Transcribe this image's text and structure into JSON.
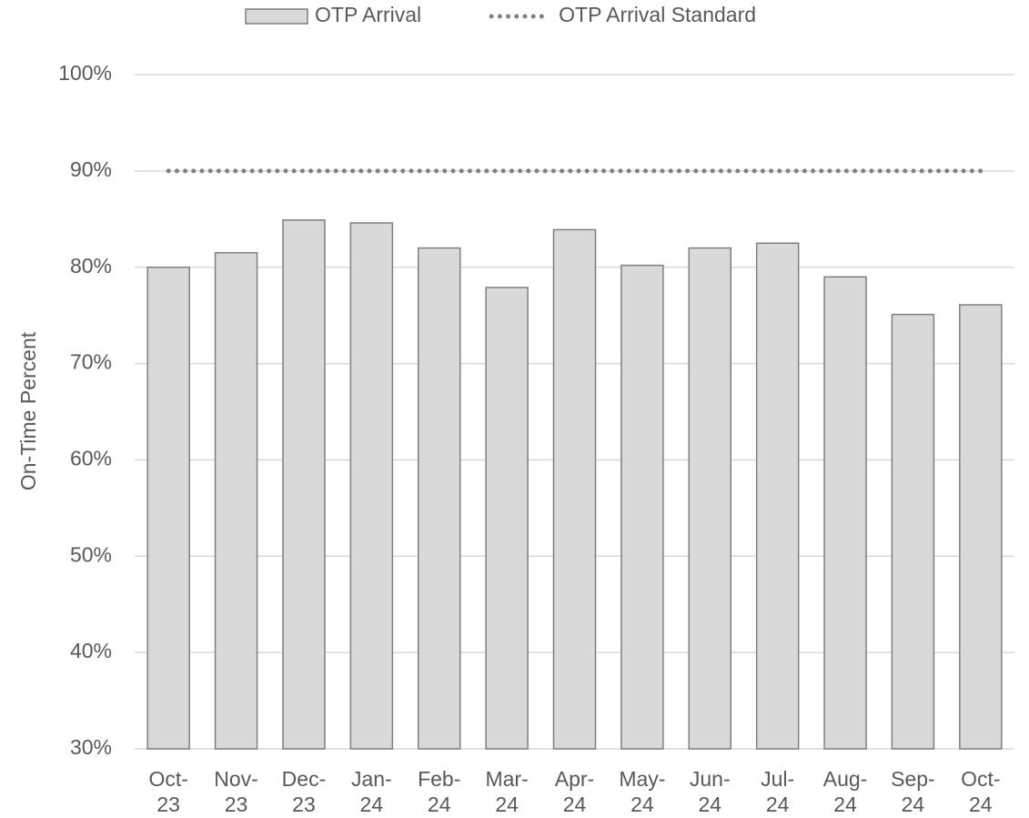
{
  "chart_data": {
    "type": "bar",
    "y_label": "On-Time Percent",
    "categories": [
      "Oct-23",
      "Nov-23",
      "Dec-23",
      "Jan-24",
      "Feb-24",
      "Mar-24",
      "Apr-24",
      "May-24",
      "Jun-24",
      "Jul-24",
      "Aug-24",
      "Sep-24",
      "Oct-24"
    ],
    "series": [
      {
        "name": "OTP Arrival",
        "type": "bar",
        "color": "#d9d9d9",
        "values": [
          80.0,
          81.5,
          84.9,
          84.6,
          82.0,
          77.9,
          83.9,
          80.2,
          82.0,
          82.5,
          79.0,
          75.1,
          76.1
        ]
      },
      {
        "name": "OTP Arrival Standard",
        "type": "line",
        "color": "#808080",
        "values": [
          90,
          90,
          90,
          90,
          90,
          90,
          90,
          90,
          90,
          90,
          90,
          90,
          90
        ]
      }
    ],
    "ylim": [
      30,
      100
    ],
    "yticks": [
      {
        "value": 30,
        "label": "30%"
      },
      {
        "value": 40,
        "label": "40%"
      },
      {
        "value": 50,
        "label": "50%"
      },
      {
        "value": 60,
        "label": "60%"
      },
      {
        "value": 70,
        "label": "70%"
      },
      {
        "value": 80,
        "label": "80%"
      },
      {
        "value": 90,
        "label": "90%"
      },
      {
        "value": 100,
        "label": "100%"
      }
    ],
    "grid": true,
    "legend": "top"
  }
}
